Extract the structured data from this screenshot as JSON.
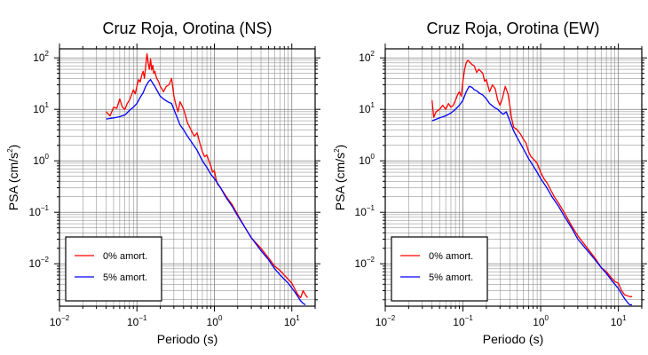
{
  "chart_data": [
    {
      "type": "line",
      "title": "Cruz Roja, Orotina (NS)",
      "xlabel": "Periodo (s)",
      "ylabel_main": "PSA (cm/s",
      "ylabel_sup": "2",
      "ylabel_close": ")",
      "xscale": "log",
      "yscale": "log",
      "xlim": [
        0.01,
        20
      ],
      "ylim": [
        0.0015,
        150
      ],
      "grid": true,
      "legend_position": "lower-left",
      "x_ticks": [
        {
          "value": 0.01,
          "base": "10",
          "exp": "−2"
        },
        {
          "value": 0.1,
          "base": "10",
          "exp": "−1"
        },
        {
          "value": 1,
          "base": "10",
          "exp": "0"
        },
        {
          "value": 10,
          "base": "10",
          "exp": "1"
        }
      ],
      "y_ticks": [
        {
          "value": 0.01,
          "base": "10",
          "exp": "−2"
        },
        {
          "value": 0.1,
          "base": "10",
          "exp": "−1"
        },
        {
          "value": 1,
          "base": "10",
          "exp": "0"
        },
        {
          "value": 10,
          "base": "10",
          "exp": "1"
        },
        {
          "value": 100,
          "base": "10",
          "exp": "2"
        }
      ],
      "series": [
        {
          "name": "0% amort.",
          "color": "#ff0000",
          "points": [
            [
              0.04,
              9
            ],
            [
              0.045,
              7.5
            ],
            [
              0.05,
              11
            ],
            [
              0.055,
              10.5
            ],
            [
              0.06,
              16
            ],
            [
              0.065,
              11
            ],
            [
              0.07,
              10
            ],
            [
              0.075,
              13
            ],
            [
              0.08,
              15
            ],
            [
              0.085,
              19
            ],
            [
              0.09,
              24
            ],
            [
              0.095,
              20
            ],
            [
              0.1,
              28
            ],
            [
              0.105,
              38
            ],
            [
              0.11,
              34
            ],
            [
              0.115,
              45
            ],
            [
              0.12,
              55
            ],
            [
              0.125,
              40
            ],
            [
              0.13,
              70
            ],
            [
              0.135,
              120
            ],
            [
              0.14,
              78
            ],
            [
              0.145,
              60
            ],
            [
              0.15,
              95
            ],
            [
              0.155,
              58
            ],
            [
              0.16,
              72
            ],
            [
              0.165,
              50
            ],
            [
              0.17,
              55
            ],
            [
              0.18,
              40
            ],
            [
              0.19,
              35
            ],
            [
              0.2,
              28
            ],
            [
              0.21,
              25
            ],
            [
              0.22,
              22
            ],
            [
              0.24,
              28
            ],
            [
              0.26,
              30
            ],
            [
              0.28,
              40
            ],
            [
              0.3,
              18
            ],
            [
              0.32,
              12
            ],
            [
              0.34,
              9
            ],
            [
              0.36,
              14
            ],
            [
              0.38,
              12
            ],
            [
              0.4,
              10
            ],
            [
              0.42,
              8
            ],
            [
              0.45,
              5.5
            ],
            [
              0.5,
              4
            ],
            [
              0.55,
              3
            ],
            [
              0.6,
              3.5
            ],
            [
              0.65,
              2.2
            ],
            [
              0.7,
              1.5
            ],
            [
              0.75,
              1.2
            ],
            [
              0.8,
              1.3
            ],
            [
              0.85,
              1
            ],
            [
              0.9,
              0.8
            ],
            [
              0.95,
              0.6
            ],
            [
              1,
              0.65
            ],
            [
              1.05,
              0.45
            ],
            [
              1.1,
              0.35
            ],
            [
              1.2,
              0.3
            ],
            [
              1.3,
              0.25
            ],
            [
              1.5,
              0.18
            ],
            [
              1.7,
              0.14
            ],
            [
              2,
              0.09
            ],
            [
              2.5,
              0.05
            ],
            [
              3,
              0.032
            ],
            [
              4,
              0.02
            ],
            [
              5,
              0.013
            ],
            [
              6,
              0.009
            ],
            [
              7,
              0.0075
            ],
            [
              8,
              0.006
            ],
            [
              9,
              0.005
            ],
            [
              10,
              0.0042
            ],
            [
              11,
              0.0032
            ],
            [
              12,
              0.0025
            ],
            [
              13,
              0.0022
            ],
            [
              14,
              0.003
            ],
            [
              15,
              0.0025
            ],
            [
              16,
              0.0022
            ]
          ]
        },
        {
          "name": "5% amort.",
          "color": "#0000ff",
          "points": [
            [
              0.04,
              6.5
            ],
            [
              0.05,
              6.8
            ],
            [
              0.06,
              7.2
            ],
            [
              0.07,
              7.8
            ],
            [
              0.08,
              9.5
            ],
            [
              0.09,
              11
            ],
            [
              0.1,
              13
            ],
            [
              0.11,
              17
            ],
            [
              0.12,
              21
            ],
            [
              0.13,
              28
            ],
            [
              0.14,
              34
            ],
            [
              0.15,
              38
            ],
            [
              0.16,
              32
            ],
            [
              0.17,
              28
            ],
            [
              0.18,
              24
            ],
            [
              0.2,
              18
            ],
            [
              0.22,
              16
            ],
            [
              0.25,
              14
            ],
            [
              0.28,
              13
            ],
            [
              0.3,
              10
            ],
            [
              0.33,
              7
            ],
            [
              0.36,
              5
            ],
            [
              0.4,
              4
            ],
            [
              0.45,
              3
            ],
            [
              0.5,
              2.4
            ],
            [
              0.6,
              1.6
            ],
            [
              0.7,
              1
            ],
            [
              0.8,
              0.75
            ],
            [
              0.9,
              0.55
            ],
            [
              1,
              0.45
            ],
            [
              1.2,
              0.3
            ],
            [
              1.4,
              0.2
            ],
            [
              1.7,
              0.13
            ],
            [
              2,
              0.085
            ],
            [
              2.5,
              0.05
            ],
            [
              3,
              0.032
            ],
            [
              4,
              0.018
            ],
            [
              5,
              0.012
            ],
            [
              6,
              0.008
            ],
            [
              7,
              0.0062
            ],
            [
              8,
              0.005
            ],
            [
              9,
              0.0042
            ],
            [
              10,
              0.0034
            ],
            [
              11,
              0.0028
            ],
            [
              12,
              0.0023
            ],
            [
              13,
              0.0019
            ],
            [
              14,
              0.0017
            ],
            [
              15,
              0.0016
            ]
          ]
        }
      ]
    },
    {
      "type": "line",
      "title": "Cruz Roja, Orotina (EW)",
      "xlabel": "Periodo (s)",
      "ylabel_main": "PSA (cm/s",
      "ylabel_sup": "2",
      "ylabel_close": ")",
      "xscale": "log",
      "yscale": "log",
      "xlim": [
        0.01,
        20
      ],
      "ylim": [
        0.0015,
        150
      ],
      "grid": true,
      "legend_position": "lower-left",
      "x_ticks": [
        {
          "value": 0.01,
          "base": "10",
          "exp": "−2"
        },
        {
          "value": 0.1,
          "base": "10",
          "exp": "−1"
        },
        {
          "value": 1,
          "base": "10",
          "exp": "0"
        },
        {
          "value": 10,
          "base": "10",
          "exp": "1"
        }
      ],
      "y_ticks": [
        {
          "value": 0.01,
          "base": "10",
          "exp": "−2"
        },
        {
          "value": 0.1,
          "base": "10",
          "exp": "−1"
        },
        {
          "value": 1,
          "base": "10",
          "exp": "0"
        },
        {
          "value": 10,
          "base": "10",
          "exp": "1"
        },
        {
          "value": 100,
          "base": "10",
          "exp": "2"
        }
      ],
      "series": [
        {
          "name": "0% amort.",
          "color": "#ff0000",
          "points": [
            [
              0.04,
              15
            ],
            [
              0.042,
              7
            ],
            [
              0.045,
              9
            ],
            [
              0.05,
              10
            ],
            [
              0.055,
              12
            ],
            [
              0.06,
              10
            ],
            [
              0.065,
              13
            ],
            [
              0.07,
              11
            ],
            [
              0.075,
              12
            ],
            [
              0.08,
              15
            ],
            [
              0.085,
              19
            ],
            [
              0.09,
              22
            ],
            [
              0.095,
              18
            ],
            [
              0.1,
              35
            ],
            [
              0.105,
              60
            ],
            [
              0.11,
              80
            ],
            [
              0.115,
              90
            ],
            [
              0.12,
              85
            ],
            [
              0.13,
              75
            ],
            [
              0.14,
              70
            ],
            [
              0.15,
              52
            ],
            [
              0.16,
              60
            ],
            [
              0.17,
              55
            ],
            [
              0.18,
              50
            ],
            [
              0.19,
              35
            ],
            [
              0.2,
              38
            ],
            [
              0.22,
              22
            ],
            [
              0.24,
              30
            ],
            [
              0.26,
              25
            ],
            [
              0.28,
              15
            ],
            [
              0.3,
              12
            ],
            [
              0.32,
              16
            ],
            [
              0.35,
              28
            ],
            [
              0.38,
              20
            ],
            [
              0.4,
              12
            ],
            [
              0.42,
              7
            ],
            [
              0.45,
              4.5
            ],
            [
              0.5,
              4
            ],
            [
              0.55,
              3.3
            ],
            [
              0.6,
              2.6
            ],
            [
              0.65,
              2.2
            ],
            [
              0.7,
              1.5
            ],
            [
              0.75,
              1.2
            ],
            [
              0.8,
              1.1
            ],
            [
              0.9,
              0.9
            ],
            [
              1,
              0.6
            ],
            [
              1.1,
              0.45
            ],
            [
              1.2,
              0.38
            ],
            [
              1.3,
              0.3
            ],
            [
              1.5,
              0.2
            ],
            [
              1.7,
              0.15
            ],
            [
              2,
              0.1
            ],
            [
              2.5,
              0.055
            ],
            [
              3,
              0.035
            ],
            [
              4,
              0.02
            ],
            [
              5,
              0.013
            ],
            [
              6,
              0.0085
            ],
            [
              7,
              0.007
            ],
            [
              8,
              0.0055
            ],
            [
              9,
              0.0045
            ],
            [
              10,
              0.0042
            ],
            [
              11,
              0.003
            ],
            [
              12,
              0.0025
            ],
            [
              13,
              0.0024
            ],
            [
              14,
              0.0023
            ],
            [
              15,
              0.0023
            ]
          ]
        },
        {
          "name": "5% amort.",
          "color": "#0000ff",
          "points": [
            [
              0.04,
              6
            ],
            [
              0.05,
              6.8
            ],
            [
              0.06,
              7.5
            ],
            [
              0.07,
              8.5
            ],
            [
              0.08,
              10
            ],
            [
              0.09,
              12
            ],
            [
              0.1,
              15
            ],
            [
              0.11,
              22
            ],
            [
              0.12,
              28
            ],
            [
              0.13,
              27
            ],
            [
              0.14,
              24
            ],
            [
              0.15,
              23
            ],
            [
              0.16,
              21
            ],
            [
              0.17,
              20
            ],
            [
              0.18,
              19
            ],
            [
              0.2,
              16
            ],
            [
              0.22,
              13
            ],
            [
              0.25,
              11
            ],
            [
              0.28,
              10
            ],
            [
              0.3,
              9
            ],
            [
              0.33,
              8
            ],
            [
              0.36,
              9
            ],
            [
              0.4,
              6
            ],
            [
              0.45,
              3.8
            ],
            [
              0.5,
              2.8
            ],
            [
              0.6,
              1.7
            ],
            [
              0.7,
              1.1
            ],
            [
              0.8,
              0.8
            ],
            [
              0.9,
              0.6
            ],
            [
              1,
              0.45
            ],
            [
              1.2,
              0.3
            ],
            [
              1.4,
              0.2
            ],
            [
              1.7,
              0.13
            ],
            [
              2,
              0.085
            ],
            [
              2.5,
              0.05
            ],
            [
              3,
              0.03
            ],
            [
              4,
              0.018
            ],
            [
              5,
              0.012
            ],
            [
              6,
              0.0085
            ],
            [
              7,
              0.0065
            ],
            [
              8,
              0.005
            ],
            [
              9,
              0.004
            ],
            [
              10,
              0.0033
            ],
            [
              11,
              0.0026
            ],
            [
              12,
              0.0021
            ],
            [
              13,
              0.0018
            ],
            [
              14,
              0.0016
            ],
            [
              15,
              0.0016
            ]
          ]
        }
      ]
    }
  ]
}
